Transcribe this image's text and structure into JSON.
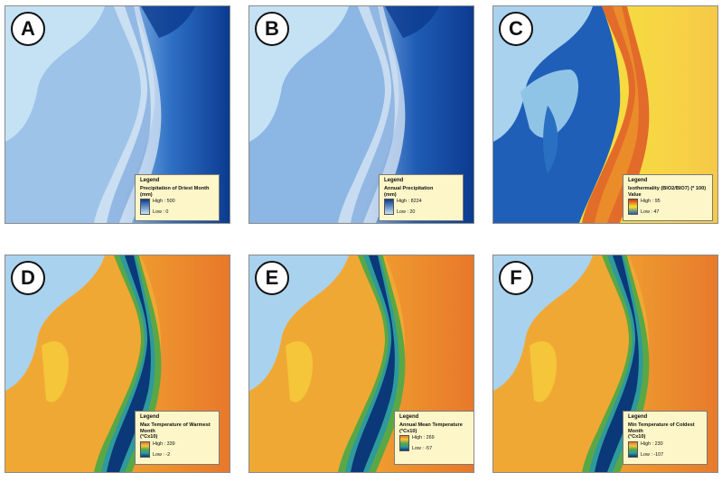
{
  "panels": [
    {
      "letter": "A",
      "legend_title": "Legend",
      "variable": "Precipitation of Driest Month",
      "unit": "(mm)",
      "high": "High : 500",
      "low": "Low : 0",
      "scheme": "blue"
    },
    {
      "letter": "B",
      "legend_title": "Legend",
      "variable": "Annual Precipitation",
      "unit": "(mm)",
      "high": "High : 8224",
      "low": "Low : 20",
      "scheme": "blue2"
    },
    {
      "letter": "C",
      "legend_title": "Legend",
      "variable": "Isothermality (BIO2/BIO7) (* 100)",
      "unit": "Value",
      "high": "High : 95",
      "low": "Low : 47",
      "scheme": "iso"
    },
    {
      "letter": "D",
      "legend_title": "Legend",
      "variable": "Max Temperature of Warmest Month",
      "unit": "(°Cx10)",
      "high": "High : 339",
      "low": "Low : -2",
      "scheme": "temp"
    },
    {
      "letter": "E",
      "legend_title": "Legend",
      "variable": "Annual Mean Temperature",
      "unit": "(°Cx10)",
      "high": "High : 269",
      "low": "Low : -57",
      "scheme": "temp2"
    },
    {
      "letter": "F",
      "legend_title": "Legend",
      "variable": "Min Temperature of Coldest Month",
      "unit": "(°Cx10)",
      "high": "High : 230",
      "low": "Low : -107",
      "scheme": "temp3"
    }
  ],
  "colors": {
    "sea": "#a9d2ee",
    "blue_low": "#c5e2f5",
    "blue_high": "#0b3b8f",
    "iso_high": "#d7301f",
    "iso_mid": "#f5e52a",
    "iso_low": "#1f5fb8",
    "temp_hot": "#e8782a",
    "temp_warm": "#f5c53a",
    "temp_mid": "#5aa845",
    "temp_cool": "#2f9a9c",
    "temp_cold": "#0b3878"
  }
}
